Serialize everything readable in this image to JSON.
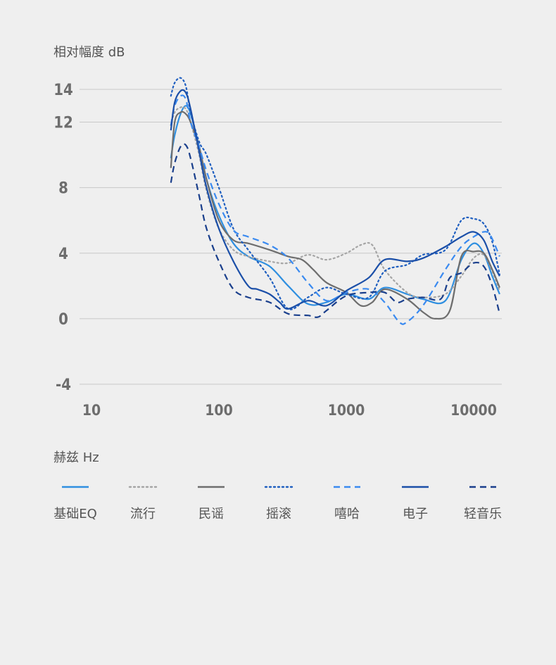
{
  "chart_data": {
    "type": "line",
    "ylabel": "相对幅度 dB",
    "xlabel": "赫兹 Hz",
    "xscale": "log",
    "xlim": [
      10,
      16000
    ],
    "ylim": [
      -4,
      14
    ],
    "xticks": [
      10,
      100,
      1000,
      10000
    ],
    "xtick_labels": [
      "10",
      "100",
      "1000",
      "10000"
    ],
    "yticks": [
      14,
      12,
      8,
      4,
      0,
      -4
    ],
    "ytick_labels": [
      "14",
      "12",
      "8",
      "4",
      "0",
      "-4"
    ],
    "grid": true,
    "legend_position": "bottom",
    "series": [
      {
        "name": "基础EQ",
        "color": "#2f8fe0",
        "dash": "solid",
        "x": [
          42,
          45,
          50,
          55,
          60,
          70,
          80,
          100,
          130,
          170,
          250,
          350,
          500,
          700,
          1000,
          1500,
          2000,
          3000,
          4000,
          6000,
          8000,
          10000,
          12000,
          14000,
          16000
        ],
        "y": [
          9.8,
          11.2,
          12.5,
          13.0,
          12.5,
          10.5,
          8.5,
          6.3,
          4.6,
          3.8,
          3.2,
          2.0,
          0.9,
          1.0,
          1.5,
          1.2,
          1.9,
          1.5,
          1.2,
          1.1,
          3.6,
          4.6,
          4.0,
          2.6,
          1.5
        ]
      },
      {
        "name": "流行",
        "color": "#a5a5a5",
        "dash": "dot",
        "x": [
          42,
          45,
          50,
          55,
          60,
          70,
          80,
          100,
          130,
          170,
          250,
          350,
          500,
          700,
          1000,
          1300,
          1600,
          2000,
          3000,
          4000,
          6000,
          8000,
          10000,
          12000,
          14000,
          16000
        ],
        "y": [
          11.8,
          12.6,
          12.9,
          12.8,
          12.0,
          10.0,
          7.8,
          5.5,
          4.2,
          3.8,
          3.5,
          3.4,
          3.9,
          3.6,
          4.0,
          4.5,
          4.5,
          3.0,
          1.6,
          1.3,
          1.5,
          2.6,
          3.7,
          3.9,
          2.9,
          1.7
        ]
      },
      {
        "name": "民谣",
        "color": "#6e6e6e",
        "dash": "solid",
        "x": [
          42,
          45,
          50,
          55,
          60,
          70,
          80,
          100,
          130,
          170,
          250,
          350,
          450,
          550,
          700,
          1000,
          1300,
          1600,
          2000,
          3000,
          4000,
          5000,
          6500,
          8000,
          10000,
          12000,
          14000,
          16000
        ],
        "y": [
          9.2,
          12.0,
          12.6,
          12.5,
          12.0,
          10.5,
          8.5,
          6.0,
          4.8,
          4.6,
          4.2,
          3.8,
          3.6,
          3.0,
          2.2,
          1.6,
          0.8,
          1.0,
          1.8,
          1.2,
          0.4,
          0.0,
          0.5,
          3.8,
          4.1,
          4.0,
          3.0,
          1.9
        ]
      },
      {
        "name": "摇滚",
        "color": "#1f5fc0",
        "dash": "dot",
        "x": [
          42,
          45,
          50,
          55,
          60,
          70,
          80,
          100,
          130,
          170,
          250,
          350,
          500,
          700,
          1000,
          1500,
          2000,
          3000,
          4000,
          6000,
          8000,
          10000,
          12000,
          14000,
          16000
        ],
        "y": [
          13.6,
          14.4,
          14.7,
          14.2,
          12.6,
          10.8,
          10.0,
          8.0,
          5.5,
          4.2,
          2.5,
          0.6,
          1.3,
          1.9,
          1.5,
          1.3,
          2.9,
          3.3,
          3.9,
          4.2,
          6.0,
          6.1,
          5.8,
          4.7,
          2.7
        ]
      },
      {
        "name": "嘻哈",
        "color": "#3a8af0",
        "dash": "dash",
        "x": [
          42,
          45,
          50,
          55,
          60,
          70,
          80,
          100,
          130,
          170,
          250,
          350,
          500,
          700,
          1000,
          1500,
          2000,
          2600,
          3000,
          4000,
          6000,
          8000,
          10000,
          12000,
          13500,
          16000
        ],
        "y": [
          11.8,
          13.0,
          13.6,
          13.4,
          12.0,
          10.5,
          9.0,
          7.0,
          5.4,
          5.0,
          4.5,
          3.7,
          2.2,
          1.1,
          1.6,
          1.8,
          1.0,
          -0.2,
          -0.2,
          0.8,
          3.0,
          4.4,
          5.0,
          5.3,
          5.1,
          3.8
        ]
      },
      {
        "name": "电子",
        "color": "#1b4fa8",
        "dash": "solid",
        "x": [
          42,
          45,
          50,
          55,
          60,
          70,
          80,
          100,
          130,
          170,
          200,
          250,
          300,
          350,
          500,
          700,
          1000,
          1500,
          2000,
          3000,
          4000,
          6000,
          8000,
          10000,
          12000,
          14000,
          16000
        ],
        "y": [
          11.5,
          13.2,
          13.9,
          13.8,
          12.8,
          10.2,
          8.0,
          5.5,
          3.5,
          2.0,
          1.8,
          1.5,
          1.0,
          0.6,
          1.1,
          0.8,
          1.7,
          2.5,
          3.6,
          3.5,
          3.7,
          4.4,
          5.0,
          5.3,
          4.8,
          3.5,
          2.6
        ]
      },
      {
        "name": "轻音乐",
        "color": "#1a3f8c",
        "dash": "dash",
        "x": [
          42,
          45,
          50,
          55,
          60,
          70,
          80,
          100,
          130,
          170,
          250,
          350,
          500,
          600,
          700,
          1000,
          1500,
          2000,
          2500,
          3000,
          4000,
          5500,
          6500,
          8000,
          10000,
          12000,
          14000,
          16000
        ],
        "y": [
          8.3,
          9.5,
          10.5,
          10.6,
          9.8,
          7.5,
          5.5,
          3.5,
          1.8,
          1.3,
          1.0,
          0.3,
          0.2,
          0.1,
          0.5,
          1.4,
          1.6,
          1.6,
          1.0,
          1.2,
          1.3,
          1.2,
          2.5,
          2.8,
          3.4,
          3.2,
          2.0,
          0.3
        ]
      }
    ]
  }
}
